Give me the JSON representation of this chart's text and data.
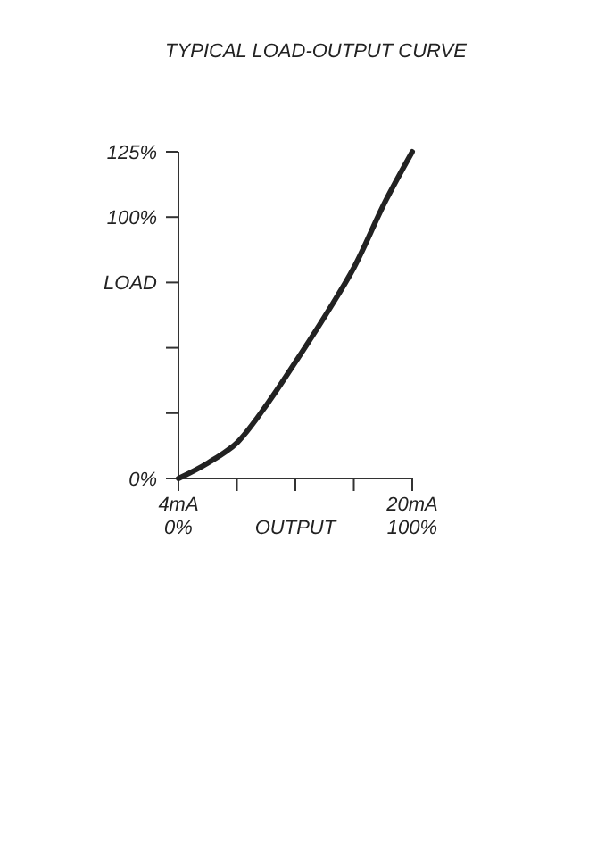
{
  "chart_data": {
    "type": "line",
    "title": "TYPICAL  LOAD-OUTPUT CURVE",
    "xlabel": "OUTPUT",
    "ylabel": "LOAD",
    "x": [
      4,
      6.03,
      8.06,
      10.1,
      12,
      14.2,
      16,
      18.2,
      20
    ],
    "series": [
      {
        "color": "#222222",
        "values": [
          0,
          6,
          14,
          28.7,
          44.5,
          63.7,
          80.6,
          106.5,
          125
        ]
      }
    ],
    "xlim": [
      4,
      20
    ],
    "xticks": [
      {
        "value": 4,
        "label": "4mA"
      },
      {
        "value": 8,
        "label": null
      },
      {
        "value": 12,
        "label": null
      },
      {
        "value": 16,
        "label": null
      },
      {
        "value": 20,
        "label": "20mA"
      }
    ],
    "x2lim": [
      0,
      100
    ],
    "x2ticks": [
      {
        "value": 0,
        "label": "0%"
      },
      {
        "value": 100,
        "label": "100%"
      }
    ],
    "ylim": [
      0,
      125
    ],
    "yticks": [
      {
        "value": 0,
        "label": "0%"
      },
      {
        "value": 25,
        "label": null
      },
      {
        "value": 50,
        "label": null
      },
      {
        "value": 75,
        "label": null
      },
      {
        "value": 100,
        "label": "100%"
      },
      {
        "value": 125,
        "label": "125%"
      }
    ],
    "grid": false,
    "marker": "none",
    "line_style": "solid"
  }
}
